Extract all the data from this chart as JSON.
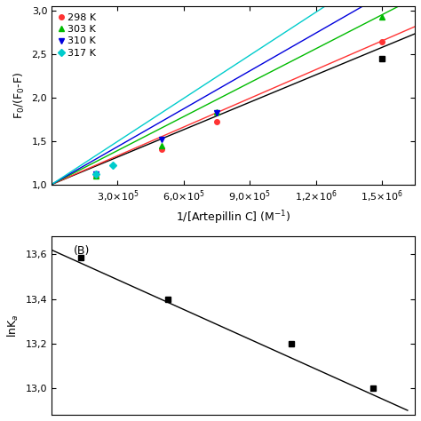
{
  "top_panel": {
    "series": [
      {
        "label": "298 K",
        "color": "#ff3333",
        "marker": "o",
        "marker_size": 4,
        "points_x": [
          200000.0,
          500000.0,
          750000.0,
          1500000.0
        ],
        "points_y": [
          1.1,
          1.4,
          1.72,
          2.64
        ],
        "line_x": [
          0,
          1650000.0
        ],
        "line_slope": 1.1e-06,
        "line_intercept": 1.0
      },
      {
        "label": "303 K",
        "color": "#00bb00",
        "marker": "^",
        "marker_size": 4,
        "points_x": [
          200000.0,
          500000.0,
          750000.0,
          1500000.0
        ],
        "points_y": [
          1.1,
          1.45,
          1.83,
          2.93
        ],
        "line_x": [
          0,
          1650000.0
        ],
        "line_slope": 1.3e-06,
        "line_intercept": 1.0
      },
      {
        "label": "310 K",
        "color": "#0000dd",
        "marker": "v",
        "marker_size": 4,
        "points_x": [
          200000.0,
          500000.0,
          750000.0
        ],
        "points_y": [
          1.12,
          1.52,
          1.82
        ],
        "line_x": [
          0,
          1650000.0
        ],
        "line_slope": 1.45e-06,
        "line_intercept": 1.0
      },
      {
        "label": "317 K",
        "color": "#00cccc",
        "marker": "D",
        "marker_size": 4,
        "points_x": [
          200000.0,
          280000.0
        ],
        "points_y": [
          1.12,
          1.22
        ],
        "line_x": [
          0,
          1650000.0
        ],
        "line_slope": 1.65e-06,
        "line_intercept": 1.0
      }
    ],
    "black_series": {
      "marker": "s",
      "marker_size": 4,
      "points_x": [
        1500000.0
      ],
      "points_y": [
        2.45
      ],
      "line_x": [
        0,
        1650000.0
      ],
      "line_slope": 1.05e-06,
      "line_intercept": 1.0
    },
    "xlabel": "1/[Artepillin C] (M$^{-1}$)",
    "ylabel": "F$_0$/(F$_0$-F)",
    "xlim": [
      0,
      1650000.0
    ],
    "ylim": [
      1.0,
      3.05
    ],
    "xticks": [
      300000.0,
      600000.0,
      900000.0,
      1200000.0,
      1500000.0
    ],
    "yticks": [
      1.0,
      1.5,
      2.0,
      2.5,
      3.0
    ]
  },
  "bottom_panel": {
    "label": "(B)",
    "points_x": [
      0.003215,
      0.003155,
      0.0033,
      0.003356
    ],
    "points_y": [
      13.4,
      13.585,
      13.2,
      13.0
    ],
    "line_x": [
      0.003135,
      0.00338
    ],
    "line_y": [
      13.62,
      12.9
    ],
    "ylabel": "lnK$_a$",
    "xlim": [
      0.003135,
      0.003385
    ],
    "ylim": [
      12.88,
      13.68
    ],
    "yticks": [
      13.0,
      13.2,
      13.4,
      13.6
    ]
  },
  "background_color": "#ffffff"
}
